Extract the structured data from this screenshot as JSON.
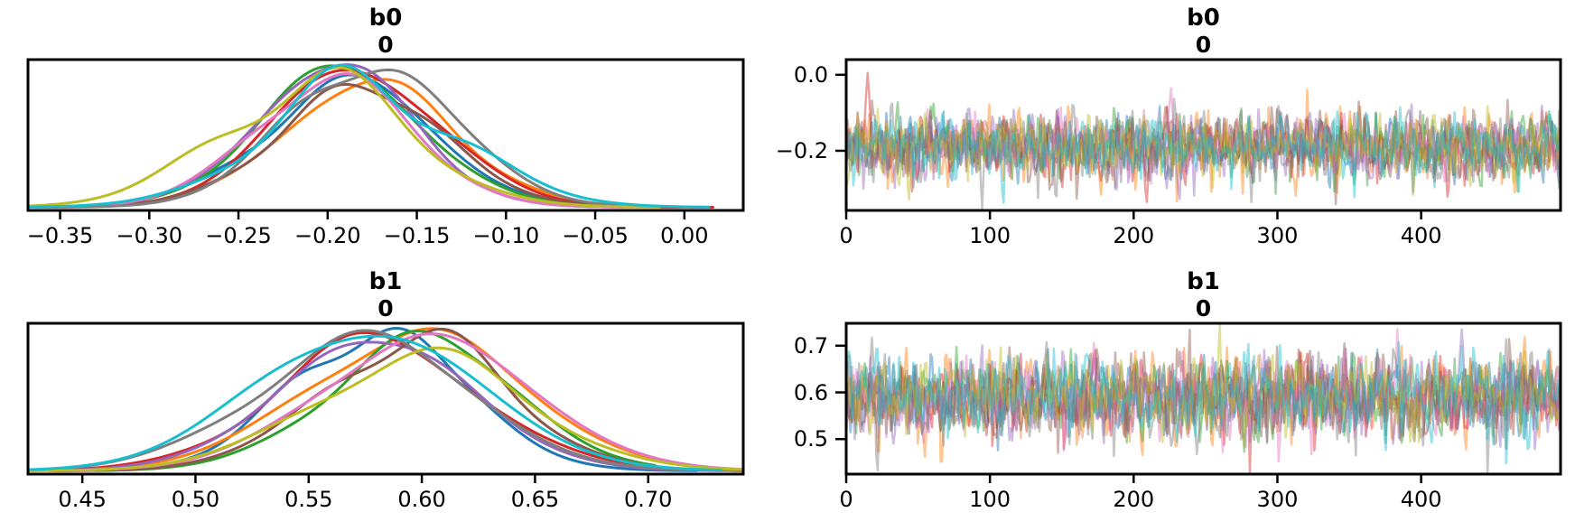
{
  "figure_background": "#ffffff",
  "n_chains": 10,
  "chain_palette": [
    "#1f77b4",
    "#ff7f0e",
    "#2ca02c",
    "#d62728",
    "#9467bd",
    "#8c564b",
    "#e377c2",
    "#7f7f7f",
    "#bcbd22",
    "#17becf"
  ],
  "chart_data": [
    {
      "id": "b0-density",
      "type": "kde",
      "panel": "top-left",
      "title": "b0",
      "subtitle": "0",
      "xlim": [
        -0.368,
        0.033
      ],
      "xticks": [
        -0.35,
        -0.3,
        -0.25,
        -0.2,
        -0.15,
        -0.1,
        -0.05,
        0.0
      ],
      "xtick_labels": [
        "−0.35",
        "−0.30",
        "−0.25",
        "−0.20",
        "−0.15",
        "−0.10",
        "−0.05",
        "0.00"
      ],
      "yticks": [],
      "grid": false,
      "legend": false,
      "center": -0.19,
      "sd": 0.047,
      "peak_density_range_x": [
        -0.21,
        -0.16
      ],
      "tail_overrides": {
        "0": {
          "left": -0.336
        },
        "3": {
          "left": -0.356,
          "right": 0.016
        }
      }
    },
    {
      "id": "b0-trace",
      "type": "trace",
      "panel": "top-right",
      "title": "b0",
      "subtitle": "0",
      "n_draws": 500,
      "xlim": [
        0,
        497
      ],
      "xticks": [
        0,
        100,
        200,
        300,
        400
      ],
      "xtick_labels": [
        "0",
        "100",
        "200",
        "300",
        "400"
      ],
      "ylim": [
        -0.357,
        0.04
      ],
      "yticks": [
        0.0,
        -0.2
      ],
      "ytick_labels": [
        "0.0",
        "−0.2"
      ],
      "grid": false,
      "legend": false,
      "mean": -0.19,
      "sd": 0.047,
      "spikes": [
        {
          "chain": 3,
          "draw": 15,
          "value": 0.005
        },
        {
          "chain": 3,
          "draw": 210,
          "value": -0.335
        },
        {
          "chain": 6,
          "draw": 227,
          "value": -0.035
        }
      ]
    },
    {
      "id": "b1-density",
      "type": "kde",
      "panel": "bottom-left",
      "title": "b1",
      "subtitle": "0",
      "xlim": [
        0.426,
        0.742
      ],
      "xticks": [
        0.45,
        0.5,
        0.55,
        0.6,
        0.65,
        0.7
      ],
      "xtick_labels": [
        "0.45",
        "0.50",
        "0.55",
        "0.60",
        "0.65",
        "0.70"
      ],
      "yticks": [],
      "grid": false,
      "legend": false,
      "center": 0.586,
      "sd": 0.042,
      "peak_density_range_x": [
        0.56,
        0.61
      ],
      "tail_overrides": {
        "2": {
          "right": 0.703
        },
        "4": {
          "right": 0.732
        },
        "3": {
          "left": 0.437
        }
      }
    },
    {
      "id": "b1-trace",
      "type": "trace",
      "panel": "bottom-right",
      "title": "b1",
      "subtitle": "0",
      "n_draws": 500,
      "xlim": [
        0,
        497
      ],
      "xticks": [
        0,
        100,
        200,
        300,
        400
      ],
      "xtick_labels": [
        "0",
        "100",
        "200",
        "300",
        "400"
      ],
      "ylim": [
        0.425,
        0.748
      ],
      "yticks": [
        0.7,
        0.6,
        0.5
      ],
      "ytick_labels": [
        "0.7",
        "0.6",
        "0.5"
      ],
      "grid": false,
      "legend": false,
      "mean": 0.59,
      "sd": 0.046,
      "spikes": [
        {
          "chain": 4,
          "draw": 430,
          "value": 0.735
        },
        {
          "chain": 1,
          "draw": 55,
          "value": 0.462
        }
      ]
    }
  ]
}
